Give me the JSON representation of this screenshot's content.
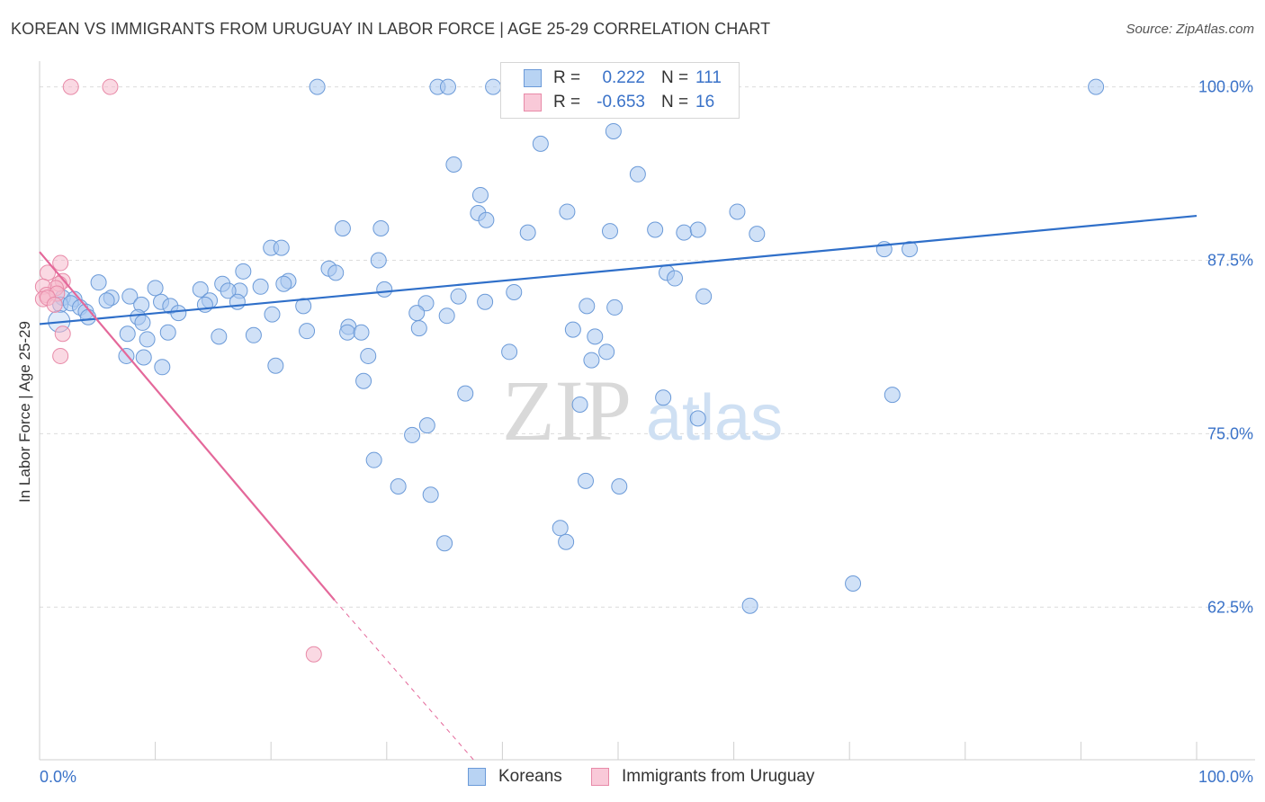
{
  "title": "KOREAN VS IMMIGRANTS FROM URUGUAY IN LABOR FORCE | AGE 25-29 CORRELATION CHART",
  "source": "Source: ZipAtlas.com",
  "watermark": {
    "zip": "ZIP",
    "atlas": "atlas"
  },
  "colors": {
    "blue_fill": "#a9c9f0",
    "blue_stroke": "#6b9ad8",
    "blue_line": "#2f6fc9",
    "pink_fill": "#f6b9cc",
    "pink_stroke": "#e88aa8",
    "pink_line": "#e4689a",
    "tick_text": "#3a72c8",
    "grid": "#dcdcdc"
  },
  "legend_top": {
    "rows": [
      {
        "r_label": "R =",
        "r_value": "0.222",
        "n_label": "N =",
        "n_value": "111"
      },
      {
        "r_label": "R =",
        "r_value": "-0.653",
        "n_label": "N =",
        "n_value": "16"
      }
    ]
  },
  "legend_bottom": [
    "Koreans",
    "Immigrants from Uruguay"
  ],
  "chart_data": {
    "type": "scatter",
    "xlabel": "",
    "ylabel": "In Labor Force | Age 25-29",
    "xlim": [
      0,
      100
    ],
    "ylim": [
      51.5,
      102.5
    ],
    "x_tick_labels": [
      "0.0%",
      "100.0%"
    ],
    "y_ticks": [
      62.5,
      75.0,
      87.5,
      100.0
    ],
    "y_tick_labels": [
      "62.5%",
      "75.0%",
      "87.5%",
      "100.0%"
    ],
    "grid": "horizontal dashed",
    "legend": "bottom-center",
    "series": [
      {
        "name": "Koreans",
        "trend": {
          "x": [
            0,
            100
          ],
          "y": [
            82.9,
            90.7
          ],
          "style": "solid"
        },
        "points": [
          [
            24.0,
            100.0
          ],
          [
            34.4,
            100.0
          ],
          [
            35.3,
            100.0
          ],
          [
            39.2,
            100.0
          ],
          [
            47.6,
            100.0
          ],
          [
            91.3,
            100.0
          ],
          [
            49.6,
            96.8
          ],
          [
            43.3,
            95.9
          ],
          [
            35.8,
            94.4
          ],
          [
            51.7,
            93.7
          ],
          [
            38.1,
            92.2
          ],
          [
            37.9,
            90.9
          ],
          [
            38.6,
            90.4
          ],
          [
            45.6,
            91.0
          ],
          [
            60.3,
            91.0
          ],
          [
            53.2,
            89.7
          ],
          [
            26.2,
            89.8
          ],
          [
            29.5,
            89.8
          ],
          [
            42.2,
            89.5
          ],
          [
            55.7,
            89.5
          ],
          [
            56.9,
            89.7
          ],
          [
            62.0,
            89.4
          ],
          [
            49.3,
            89.6
          ],
          [
            20.0,
            88.4
          ],
          [
            20.9,
            88.4
          ],
          [
            73.0,
            88.3
          ],
          [
            75.2,
            88.3
          ],
          [
            29.3,
            87.5
          ],
          [
            25.0,
            86.9
          ],
          [
            25.6,
            86.6
          ],
          [
            17.6,
            86.7
          ],
          [
            54.2,
            86.6
          ],
          [
            54.9,
            86.2
          ],
          [
            5.1,
            85.9
          ],
          [
            21.5,
            86.0
          ],
          [
            21.1,
            85.8
          ],
          [
            15.8,
            85.8
          ],
          [
            19.1,
            85.6
          ],
          [
            13.9,
            85.4
          ],
          [
            17.3,
            85.3
          ],
          [
            16.3,
            85.3
          ],
          [
            10.0,
            85.5
          ],
          [
            29.8,
            85.4
          ],
          [
            41.0,
            85.2
          ],
          [
            36.2,
            84.9
          ],
          [
            57.4,
            84.9
          ],
          [
            6.2,
            84.8
          ],
          [
            5.8,
            84.6
          ],
          [
            7.8,
            84.9
          ],
          [
            2.0,
            84.8
          ],
          [
            3.0,
            84.7
          ],
          [
            1.8,
            84.3
          ],
          [
            2.7,
            84.4
          ],
          [
            3.5,
            84.1
          ],
          [
            14.7,
            84.6
          ],
          [
            14.3,
            84.3
          ],
          [
            10.5,
            84.5
          ],
          [
            17.1,
            84.5
          ],
          [
            11.3,
            84.2
          ],
          [
            8.8,
            84.3
          ],
          [
            22.8,
            84.2
          ],
          [
            33.4,
            84.4
          ],
          [
            38.5,
            84.5
          ],
          [
            47.3,
            84.2
          ],
          [
            49.7,
            84.1
          ],
          [
            32.6,
            83.7
          ],
          [
            35.2,
            83.5
          ],
          [
            4.0,
            83.8
          ],
          [
            12.0,
            83.7
          ],
          [
            20.1,
            83.6
          ],
          [
            4.2,
            83.4
          ],
          [
            8.5,
            83.4
          ],
          [
            8.9,
            83.0
          ],
          [
            26.7,
            82.7
          ],
          [
            32.8,
            82.6
          ],
          [
            23.1,
            82.4
          ],
          [
            46.1,
            82.5
          ],
          [
            26.6,
            82.3
          ],
          [
            27.8,
            82.3
          ],
          [
            7.6,
            82.2
          ],
          [
            11.1,
            82.3
          ],
          [
            18.5,
            82.1
          ],
          [
            15.5,
            82.0
          ],
          [
            9.3,
            81.8
          ],
          [
            48.0,
            82.0
          ],
          [
            40.6,
            80.9
          ],
          [
            49.0,
            80.9
          ],
          [
            7.5,
            80.6
          ],
          [
            20.4,
            79.9
          ],
          [
            28.4,
            80.6
          ],
          [
            47.7,
            80.3
          ],
          [
            9.0,
            80.5
          ],
          [
            10.6,
            79.8
          ],
          [
            28.0,
            78.8
          ],
          [
            73.7,
            77.8
          ],
          [
            53.9,
            77.6
          ],
          [
            36.8,
            77.9
          ],
          [
            46.7,
            77.1
          ],
          [
            56.9,
            76.1
          ],
          [
            33.5,
            75.6
          ],
          [
            32.2,
            74.9
          ],
          [
            28.9,
            73.1
          ],
          [
            47.2,
            71.6
          ],
          [
            50.1,
            71.2
          ],
          [
            31.0,
            71.2
          ],
          [
            33.8,
            70.6
          ],
          [
            45.0,
            68.2
          ],
          [
            35.0,
            67.1
          ],
          [
            45.5,
            67.2
          ],
          [
            70.3,
            64.2
          ],
          [
            61.4,
            62.6
          ]
        ]
      },
      {
        "name": "Immigrants from Uruguay",
        "trend": {
          "x": [
            0,
            25.5
          ],
          "y": [
            88.1,
            63.0
          ],
          "style": "solid",
          "dashed_extension": {
            "x": [
              25.5,
              37.5
            ],
            "y": [
              63.0,
              51.5
            ]
          }
        },
        "points": [
          [
            2.7,
            100.0
          ],
          [
            6.1,
            100.0
          ],
          [
            1.8,
            87.3
          ],
          [
            0.7,
            86.6
          ],
          [
            2.0,
            86.0
          ],
          [
            1.7,
            85.8
          ],
          [
            1.4,
            85.5
          ],
          [
            0.3,
            85.6
          ],
          [
            0.6,
            85.0
          ],
          [
            1.5,
            85.1
          ],
          [
            0.3,
            84.7
          ],
          [
            0.7,
            84.8
          ],
          [
            1.3,
            84.3
          ],
          [
            2.0,
            82.2
          ],
          [
            1.8,
            80.6
          ],
          [
            23.7,
            59.1
          ]
        ]
      }
    ]
  }
}
